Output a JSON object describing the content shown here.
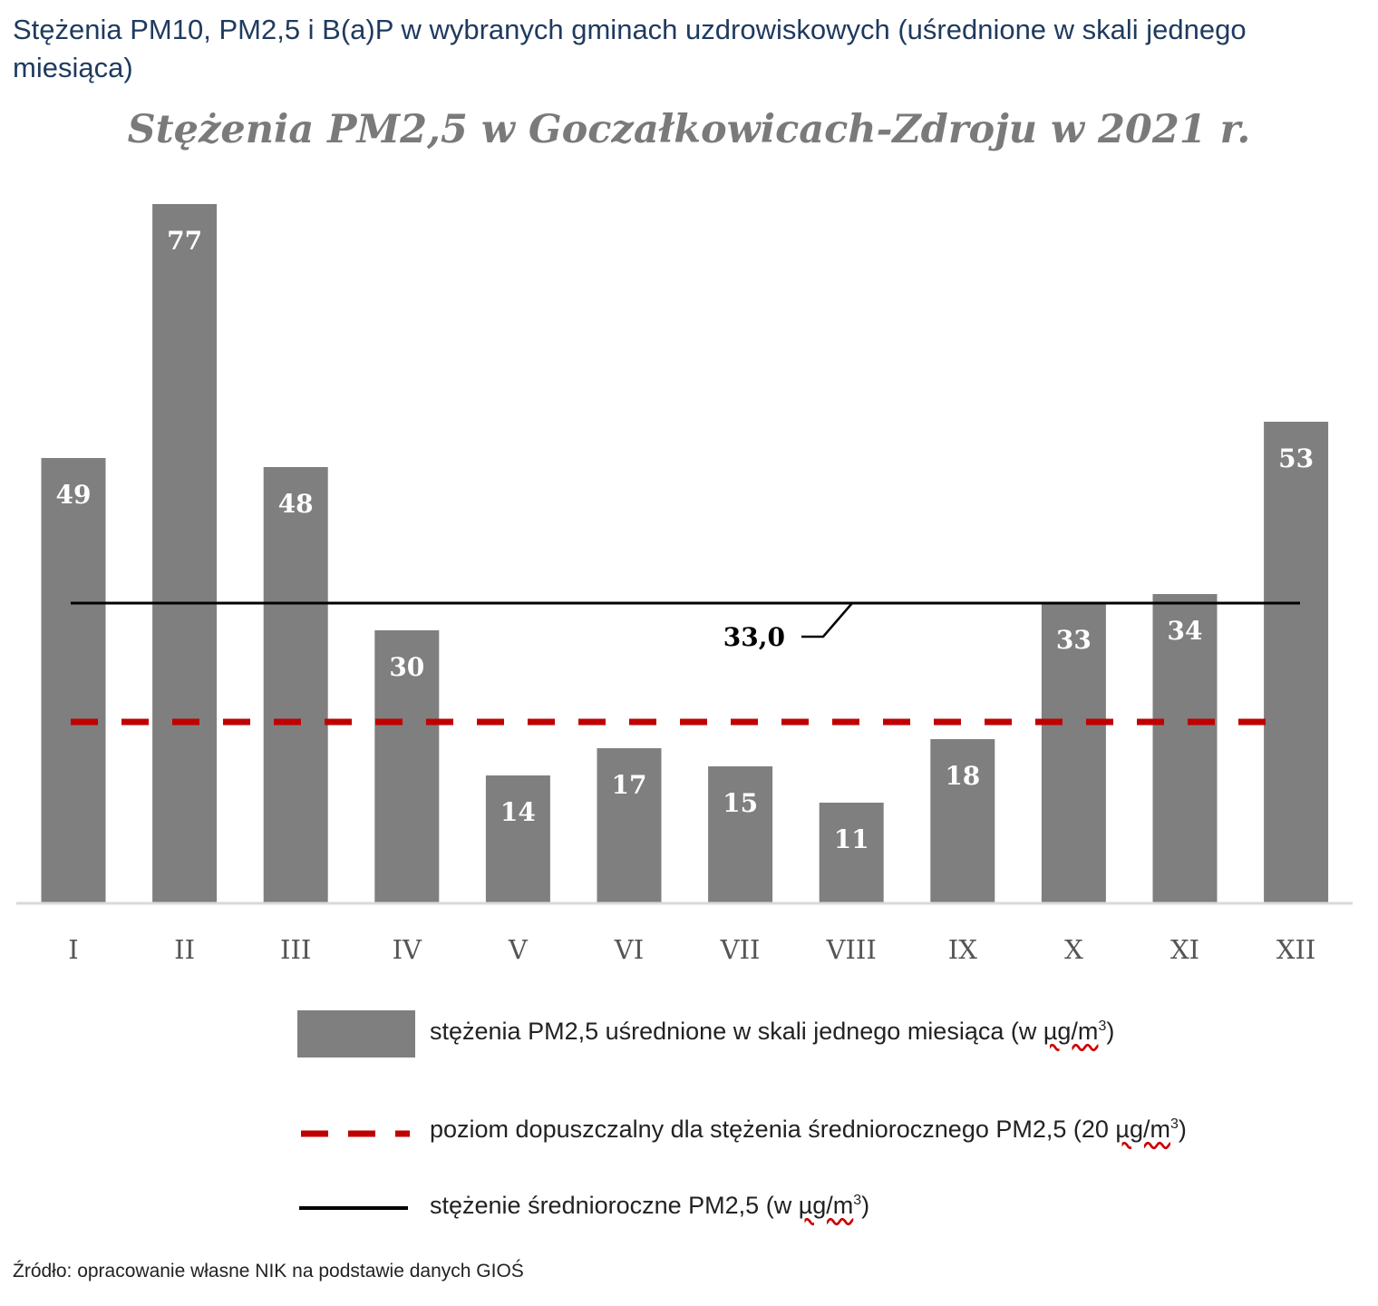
{
  "page": {
    "title": "Stężenia PM10, PM2,5 i B(a)P w wybranych gminach uzdrowiskowych (uśrednione w skali jednego miesiąca)",
    "source": "Źródło: opracowanie własne NIK na podstawie danych GIOŚ"
  },
  "chart_data": {
    "type": "bar",
    "title": "Stężenia PM2,5 w Goczałkowicach-Zdroju w 2021 r.",
    "categories": [
      "I",
      "II",
      "III",
      "IV",
      "V",
      "VI",
      "VII",
      "VIII",
      "IX",
      "X",
      "XI",
      "XII"
    ],
    "series": [
      {
        "name": "stężenia PM2,5 uśrednione w skali jednego miesiąca (w µg/m³)",
        "values": [
          49,
          77,
          48,
          30,
          14,
          17,
          15,
          11,
          18,
          33,
          34,
          53
        ]
      }
    ],
    "reference_lines": [
      {
        "name": "stężenie średnioroczne PM2,5 (w µg/m³)",
        "value": 33.0,
        "label": "33,0",
        "style": "solid",
        "color": "#000000"
      },
      {
        "name": "poziom dopuszczalny dla stężenia średniorocznego PM2,5 (20 µg/m³)",
        "value": 20,
        "style": "dashed",
        "color": "#c00000"
      }
    ],
    "ylim": [
      0,
      80
    ],
    "grid": false,
    "legend": {
      "position": "bottom",
      "bar_prefix": "stężenia PM2,5 uśrednione w skali jednego miesiąca (w ",
      "dashed_prefix": "poziom dopuszczalny dla stężenia średniorocznego PM2,5 (20 ",
      "solid_prefix": "stężenie średnioroczne PM2,5 (w ",
      "unit_main": "µg/m",
      "unit_exp": "3",
      "close": ")"
    },
    "colors": {
      "bar": "#7f7f7f",
      "bar_label": "#ffffff",
      "axis": "#d9d9d9",
      "tick": "#555555",
      "mean_line": "#000000",
      "limit_line": "#c00000"
    }
  }
}
